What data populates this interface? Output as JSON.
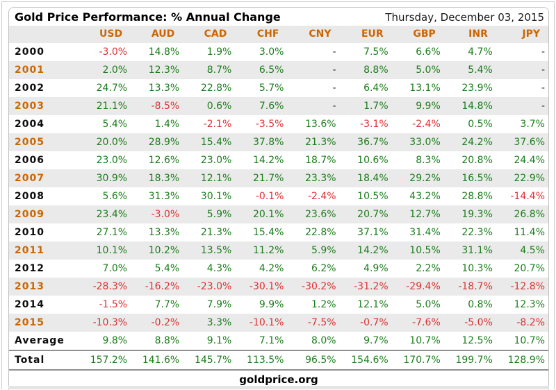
{
  "header": {
    "title": "Gold Price Performance: % Annual Change",
    "date": "Thursday, December 03, 2015"
  },
  "footer": {
    "site": "goldprice.org"
  },
  "colors": {
    "positive_green": "#1b7e1b",
    "negative_red": "#dd3232",
    "accent_orange": "#cc6600",
    "row_stripe": "#eaeaea",
    "header_bg": "#e9e9e9"
  },
  "chart_data": {
    "type": "table",
    "title": "Gold Price Performance: % Annual Change",
    "columns": [
      "USD",
      "AUD",
      "CAD",
      "CHF",
      "CNY",
      "EUR",
      "GBP",
      "INR",
      "JPY"
    ],
    "rows": [
      {
        "label": "2000",
        "values": [
          "-3.0%",
          "14.8%",
          "1.9%",
          "3.0%",
          "-",
          "7.5%",
          "6.6%",
          "4.7%",
          "-"
        ]
      },
      {
        "label": "2001",
        "values": [
          "2.0%",
          "12.3%",
          "8.7%",
          "6.5%",
          "-",
          "8.8%",
          "5.0%",
          "5.4%",
          "-"
        ]
      },
      {
        "label": "2002",
        "values": [
          "24.7%",
          "13.3%",
          "22.8%",
          "5.7%",
          "-",
          "6.4%",
          "13.1%",
          "23.9%",
          "-"
        ]
      },
      {
        "label": "2003",
        "values": [
          "21.1%",
          "-8.5%",
          "0.6%",
          "7.6%",
          "-",
          "1.7%",
          "9.9%",
          "14.8%",
          "-"
        ]
      },
      {
        "label": "2004",
        "values": [
          "5.4%",
          "1.4%",
          "-2.1%",
          "-3.5%",
          "13.6%",
          "-3.1%",
          "-2.4%",
          "0.5%",
          "3.7%"
        ]
      },
      {
        "label": "2005",
        "values": [
          "20.0%",
          "28.9%",
          "15.4%",
          "37.8%",
          "21.3%",
          "36.7%",
          "33.0%",
          "24.2%",
          "37.6%"
        ]
      },
      {
        "label": "2006",
        "values": [
          "23.0%",
          "12.6%",
          "23.0%",
          "14.2%",
          "18.7%",
          "10.6%",
          "8.3%",
          "20.8%",
          "24.4%"
        ]
      },
      {
        "label": "2007",
        "values": [
          "30.9%",
          "18.3%",
          "12.1%",
          "21.7%",
          "23.3%",
          "18.4%",
          "29.2%",
          "16.5%",
          "22.9%"
        ]
      },
      {
        "label": "2008",
        "values": [
          "5.6%",
          "31.3%",
          "30.1%",
          "-0.1%",
          "-2.4%",
          "10.5%",
          "43.2%",
          "28.8%",
          "-14.4%"
        ]
      },
      {
        "label": "2009",
        "values": [
          "23.4%",
          "-3.0%",
          "5.9%",
          "20.1%",
          "23.6%",
          "20.7%",
          "12.7%",
          "19.3%",
          "26.8%"
        ]
      },
      {
        "label": "2010",
        "values": [
          "27.1%",
          "13.3%",
          "21.3%",
          "15.4%",
          "22.8%",
          "37.1%",
          "31.4%",
          "22.3%",
          "11.4%"
        ]
      },
      {
        "label": "2011",
        "values": [
          "10.1%",
          "10.2%",
          "13.5%",
          "11.2%",
          "5.9%",
          "14.2%",
          "10.5%",
          "31.1%",
          "4.5%"
        ]
      },
      {
        "label": "2012",
        "values": [
          "7.0%",
          "5.4%",
          "4.3%",
          "4.2%",
          "6.2%",
          "4.9%",
          "2.2%",
          "10.3%",
          "20.7%"
        ]
      },
      {
        "label": "2013",
        "values": [
          "-28.3%",
          "-16.2%",
          "-23.0%",
          "-30.1%",
          "-30.2%",
          "-31.2%",
          "-29.4%",
          "-18.7%",
          "-12.8%"
        ]
      },
      {
        "label": "2014",
        "values": [
          "-1.5%",
          "7.7%",
          "7.9%",
          "9.9%",
          "1.2%",
          "12.1%",
          "5.0%",
          "0.8%",
          "12.3%"
        ]
      },
      {
        "label": "2015",
        "values": [
          "-10.3%",
          "-0.2%",
          "3.3%",
          "-10.1%",
          "-7.5%",
          "-0.7%",
          "-7.6%",
          "-5.0%",
          "-8.2%"
        ]
      },
      {
        "label": "Average",
        "values": [
          "9.8%",
          "8.8%",
          "9.1%",
          "7.1%",
          "8.0%",
          "9.7%",
          "10.7%",
          "12.5%",
          "10.7%"
        ]
      },
      {
        "label": "Total",
        "values": [
          "157.2%",
          "141.6%",
          "145.7%",
          "113.5%",
          "96.5%",
          "154.6%",
          "170.7%",
          "199.7%",
          "128.9%"
        ]
      }
    ]
  }
}
